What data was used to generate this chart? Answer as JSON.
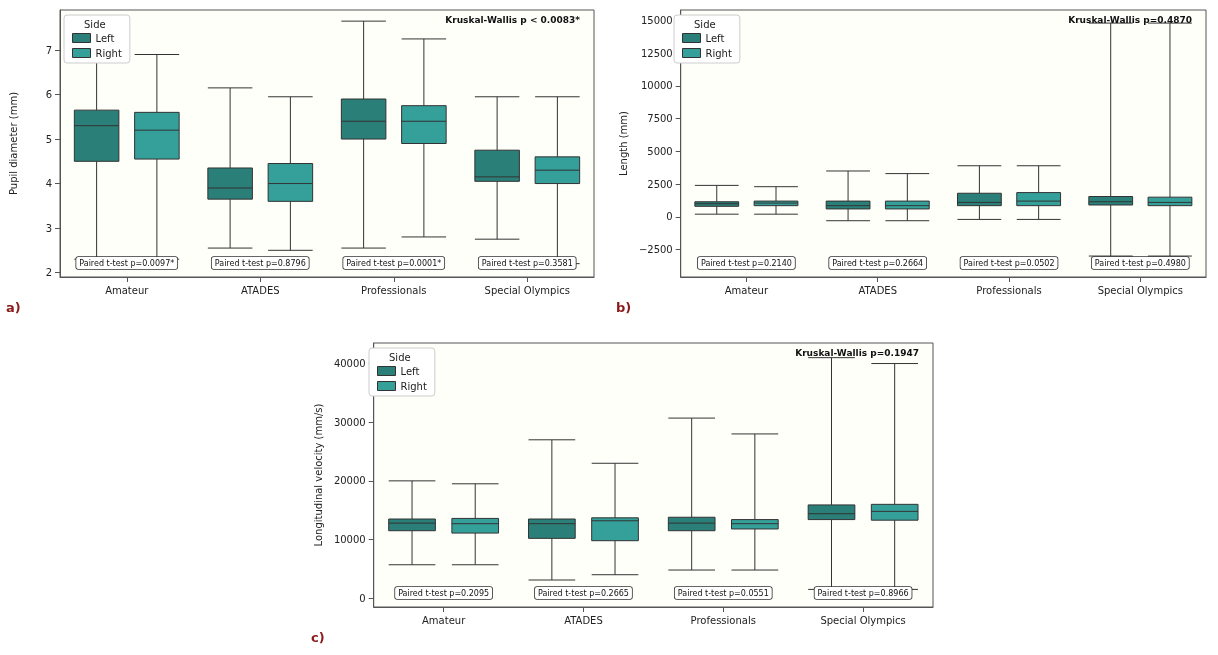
{
  "chart_data": [
    {
      "type": "box",
      "ylabel": "Pupil diameter (mm)",
      "categories": [
        "Amateur",
        "ATADES",
        "Professionals",
        "Special Olympics"
      ],
      "legend": "top left",
      "legend_title": "Side",
      "ylim": [
        1.9,
        7.9
      ],
      "yticks": [
        2,
        3,
        4,
        5,
        6,
        7
      ],
      "series": [
        {
          "name": "Left",
          "color": "#2a7f78",
          "boxes": [
            {
              "low": 2.3,
              "q1": 4.5,
              "median": 5.3,
              "q3": 5.65,
              "high": 6.95
            },
            {
              "low": 2.55,
              "q1": 3.65,
              "median": 3.9,
              "q3": 4.35,
              "high": 6.15
            },
            {
              "low": 2.55,
              "q1": 5.0,
              "median": 5.4,
              "q3": 5.9,
              "high": 7.65
            },
            {
              "low": 2.75,
              "q1": 4.05,
              "median": 4.15,
              "q3": 4.75,
              "high": 5.95
            }
          ]
        },
        {
          "name": "Right",
          "color": "#35a09a",
          "boxes": [
            {
              "low": 2.3,
              "q1": 4.55,
              "median": 5.2,
              "q3": 5.6,
              "high": 6.9
            },
            {
              "low": 2.5,
              "q1": 3.6,
              "median": 4.0,
              "q3": 4.45,
              "high": 5.95
            },
            {
              "low": 2.8,
              "q1": 4.9,
              "median": 5.4,
              "q3": 5.75,
              "high": 7.25
            },
            {
              "low": 2.2,
              "q1": 4.0,
              "median": 4.3,
              "q3": 4.6,
              "high": 5.95
            }
          ]
        }
      ],
      "annotations": [
        "Kruskal-Wallis p < 0.0083*",
        "a)",
        "Paired t-test p=0.0097*",
        "Paired t-test p=0.8796",
        "Paired t-test p=0.0001*",
        "Paired t-test p=0.3581"
      ]
    },
    {
      "type": "box",
      "ylabel": "Length (mm)",
      "categories": [
        "Amateur",
        "ATADES",
        "Professionals",
        "Special Olympics"
      ],
      "legend": "top left",
      "legend_title": "Side",
      "ylim": [
        -4600,
        15800
      ],
      "yticks": [
        {
          "value": -2500,
          "label": "−2500"
        },
        0,
        2500,
        5000,
        7500,
        10000,
        12500,
        15000
      ],
      "series": [
        {
          "name": "Left",
          "color": "#2a7f78",
          "boxes": [
            {
              "low": 200,
              "q1": 800,
              "median": 1000,
              "q3": 1150,
              "high": 2400
            },
            {
              "low": -300,
              "q1": 600,
              "median": 850,
              "q3": 1200,
              "high": 3500
            },
            {
              "low": -200,
              "q1": 850,
              "median": 1100,
              "q3": 1800,
              "high": 3900
            },
            {
              "low": -3000,
              "q1": 900,
              "median": 1150,
              "q3": 1550,
              "high": 14800
            }
          ]
        },
        {
          "name": "Right",
          "color": "#35a09a",
          "boxes": [
            {
              "low": 200,
              "q1": 850,
              "median": 1050,
              "q3": 1200,
              "high": 2300
            },
            {
              "low": -300,
              "q1": 600,
              "median": 850,
              "q3": 1200,
              "high": 3300
            },
            {
              "low": -200,
              "q1": 850,
              "median": 1200,
              "q3": 1850,
              "high": 3900
            },
            {
              "low": -3000,
              "q1": 850,
              "median": 1100,
              "q3": 1500,
              "high": 14800
            }
          ]
        }
      ],
      "annotations": [
        "Kruskal-Wallis p=0.4870",
        "b)",
        "Paired t-test p=0.2140",
        "Paired t-test p=0.2664",
        "Paired t-test p=0.0502",
        "Paired t-test p=0.4980"
      ]
    },
    {
      "type": "box",
      "ylabel": "Longitudinal velocity (mm/s)",
      "categories": [
        "Amateur",
        "ATADES",
        "Professionals",
        "Special Olympics"
      ],
      "legend": "top left",
      "legend_title": "Side",
      "ylim": [
        -1500,
        43500
      ],
      "yticks": [
        0,
        10000,
        20000,
        30000,
        40000
      ],
      "series": [
        {
          "name": "Left",
          "color": "#2a7f78",
          "boxes": [
            {
              "low": 5700,
              "q1": 11500,
              "median": 12800,
              "q3": 13500,
              "high": 20000
            },
            {
              "low": 3100,
              "q1": 10200,
              "median": 12700,
              "q3": 13500,
              "high": 27000
            },
            {
              "low": 4800,
              "q1": 11500,
              "median": 12800,
              "q3": 13800,
              "high": 30700
            },
            {
              "low": 1500,
              "q1": 13400,
              "median": 14400,
              "q3": 15900,
              "high": 41000
            }
          ]
        },
        {
          "name": "Right",
          "color": "#35a09a",
          "boxes": [
            {
              "low": 5700,
              "q1": 11100,
              "median": 12700,
              "q3": 13600,
              "high": 19500
            },
            {
              "low": 4000,
              "q1": 9800,
              "median": 13200,
              "q3": 13700,
              "high": 23000
            },
            {
              "low": 4800,
              "q1": 11800,
              "median": 12700,
              "q3": 13400,
              "high": 28000
            },
            {
              "low": 1500,
              "q1": 13300,
              "median": 14800,
              "q3": 16000,
              "high": 40000
            }
          ]
        }
      ],
      "annotations": [
        "Kruskal-Wallis p=0.1947",
        "c)",
        "Paired t-test p=0.2095",
        "Paired t-test p=0.2665",
        "Paired t-test p=0.0551",
        "Paired t-test p=0.8966"
      ]
    }
  ]
}
